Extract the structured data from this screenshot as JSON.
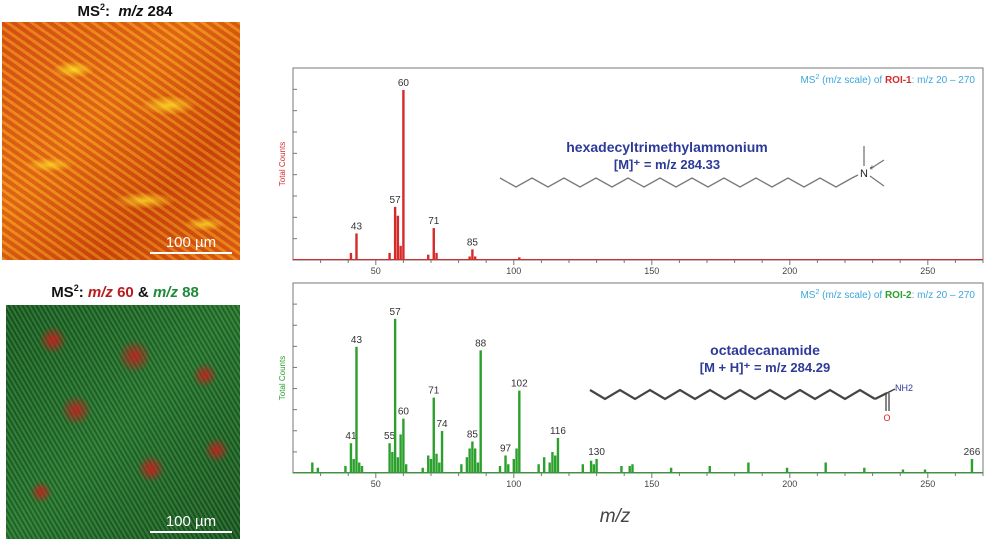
{
  "images": [
    {
      "title_prefix": "MS",
      "title_sup": "2",
      "title_colon": ":",
      "title_mz": "m/z",
      "title_value": "284",
      "scale_label": "100 µm"
    },
    {
      "title_prefix": "MS",
      "title_sup": "2",
      "title_colon": ":",
      "title_mz1": "m/z",
      "title_value1": "60",
      "title_amp": "&",
      "title_mz2": "m/z",
      "title_value2": "88",
      "scale_label": "100 µm"
    }
  ],
  "colors": {
    "red_series": "#d42a2a",
    "green_series": "#2ca02c",
    "info_blue": "#3ba7dc",
    "compound_navy": "#2c3a9a",
    "roi1_red": "#d42a2a",
    "roi2_green": "#2ca02c",
    "oxygen_red": "#e02020"
  },
  "x_axis_label": "m/z",
  "chart_data": [
    {
      "type": "bar",
      "series_color": "#d42a2a",
      "ylabel": "Total Counts",
      "xlim": [
        20,
        270
      ],
      "ylim": [
        0,
        105
      ],
      "xticks": [
        50,
        100,
        150,
        200,
        250
      ],
      "info_prefix": "MS",
      "info_sup": "2",
      "info_mid": "(m/z scale) of",
      "info_roi": "ROI-1",
      "info_range": ": m/z 20 – 270",
      "compound_name": "hexadecyltrimethylammonium",
      "compound_formula": "[M]⁺ = m/z 284.33",
      "peaks": [
        {
          "x": 43,
          "y": 15,
          "label": "43"
        },
        {
          "x": 57,
          "y": 30,
          "label": "57"
        },
        {
          "x": 60,
          "y": 96,
          "label": "60"
        },
        {
          "x": 71,
          "y": 18,
          "label": "71"
        },
        {
          "x": 85,
          "y": 6,
          "label": "85"
        },
        {
          "x": 41,
          "y": 4,
          "label": ""
        },
        {
          "x": 55,
          "y": 4,
          "label": ""
        },
        {
          "x": 58,
          "y": 25,
          "label": ""
        },
        {
          "x": 59,
          "y": 8,
          "label": ""
        },
        {
          "x": 69,
          "y": 3,
          "label": ""
        },
        {
          "x": 72,
          "y": 4,
          "label": ""
        },
        {
          "x": 84,
          "y": 2,
          "label": ""
        },
        {
          "x": 86,
          "y": 2,
          "label": ""
        },
        {
          "x": 102,
          "y": 1.5,
          "label": ""
        }
      ]
    },
    {
      "type": "bar",
      "series_color": "#2ca02c",
      "ylabel": "Total Counts",
      "xlim": [
        20,
        270
      ],
      "ylim": [
        0,
        105
      ],
      "xticks": [
        50,
        100,
        150,
        200,
        250
      ],
      "info_prefix": "MS",
      "info_sup": "2",
      "info_mid": "(m/z scale) of",
      "info_roi": "ROI-2",
      "info_range": ": m/z 20 – 270",
      "compound_name": "octadecanamide",
      "compound_formula": "[M + H]⁺ = m/z 284.29",
      "amide_label": "NH2",
      "oxygen_label": "O",
      "peaks": [
        {
          "x": 41,
          "y": 17,
          "label": "41"
        },
        {
          "x": 43,
          "y": 72,
          "label": "43"
        },
        {
          "x": 55,
          "y": 17,
          "label": "55"
        },
        {
          "x": 57,
          "y": 88,
          "label": "57"
        },
        {
          "x": 60,
          "y": 31,
          "label": "60"
        },
        {
          "x": 71,
          "y": 43,
          "label": "71"
        },
        {
          "x": 74,
          "y": 24,
          "label": "74"
        },
        {
          "x": 85,
          "y": 18,
          "label": "85"
        },
        {
          "x": 88,
          "y": 70,
          "label": "88"
        },
        {
          "x": 97,
          "y": 10,
          "label": "97"
        },
        {
          "x": 102,
          "y": 47,
          "label": "102"
        },
        {
          "x": 116,
          "y": 20,
          "label": "116"
        },
        {
          "x": 130,
          "y": 8,
          "label": "130"
        },
        {
          "x": 266,
          "y": 8,
          "label": "266"
        },
        {
          "x": 27,
          "y": 6,
          "label": ""
        },
        {
          "x": 29,
          "y": 3,
          "label": ""
        },
        {
          "x": 39,
          "y": 4,
          "label": ""
        },
        {
          "x": 42,
          "y": 8,
          "label": ""
        },
        {
          "x": 44,
          "y": 6,
          "label": ""
        },
        {
          "x": 45,
          "y": 4,
          "label": ""
        },
        {
          "x": 56,
          "y": 12,
          "label": ""
        },
        {
          "x": 58,
          "y": 9,
          "label": ""
        },
        {
          "x": 59,
          "y": 22,
          "label": ""
        },
        {
          "x": 61,
          "y": 5,
          "label": ""
        },
        {
          "x": 67,
          "y": 3,
          "label": ""
        },
        {
          "x": 69,
          "y": 10,
          "label": ""
        },
        {
          "x": 70,
          "y": 8,
          "label": ""
        },
        {
          "x": 72,
          "y": 11,
          "label": ""
        },
        {
          "x": 73,
          "y": 6,
          "label": ""
        },
        {
          "x": 81,
          "y": 5,
          "label": ""
        },
        {
          "x": 83,
          "y": 9,
          "label": ""
        },
        {
          "x": 84,
          "y": 14,
          "label": ""
        },
        {
          "x": 86,
          "y": 14,
          "label": ""
        },
        {
          "x": 87,
          "y": 6,
          "label": ""
        },
        {
          "x": 95,
          "y": 4,
          "label": ""
        },
        {
          "x": 98,
          "y": 5,
          "label": ""
        },
        {
          "x": 100,
          "y": 8,
          "label": ""
        },
        {
          "x": 101,
          "y": 14,
          "label": ""
        },
        {
          "x": 109,
          "y": 5,
          "label": ""
        },
        {
          "x": 111,
          "y": 9,
          "label": ""
        },
        {
          "x": 113,
          "y": 6,
          "label": ""
        },
        {
          "x": 114,
          "y": 12,
          "label": ""
        },
        {
          "x": 115,
          "y": 10,
          "label": ""
        },
        {
          "x": 125,
          "y": 5,
          "label": ""
        },
        {
          "x": 128,
          "y": 7,
          "label": ""
        },
        {
          "x": 129,
          "y": 5,
          "label": ""
        },
        {
          "x": 139,
          "y": 4,
          "label": ""
        },
        {
          "x": 142,
          "y": 4,
          "label": ""
        },
        {
          "x": 143,
          "y": 5,
          "label": ""
        },
        {
          "x": 157,
          "y": 3,
          "label": ""
        },
        {
          "x": 171,
          "y": 4,
          "label": ""
        },
        {
          "x": 185,
          "y": 6,
          "label": ""
        },
        {
          "x": 199,
          "y": 3,
          "label": ""
        },
        {
          "x": 213,
          "y": 6,
          "label": ""
        },
        {
          "x": 227,
          "y": 3,
          "label": ""
        },
        {
          "x": 241,
          "y": 2,
          "label": ""
        },
        {
          "x": 249,
          "y": 2,
          "label": ""
        }
      ]
    }
  ]
}
